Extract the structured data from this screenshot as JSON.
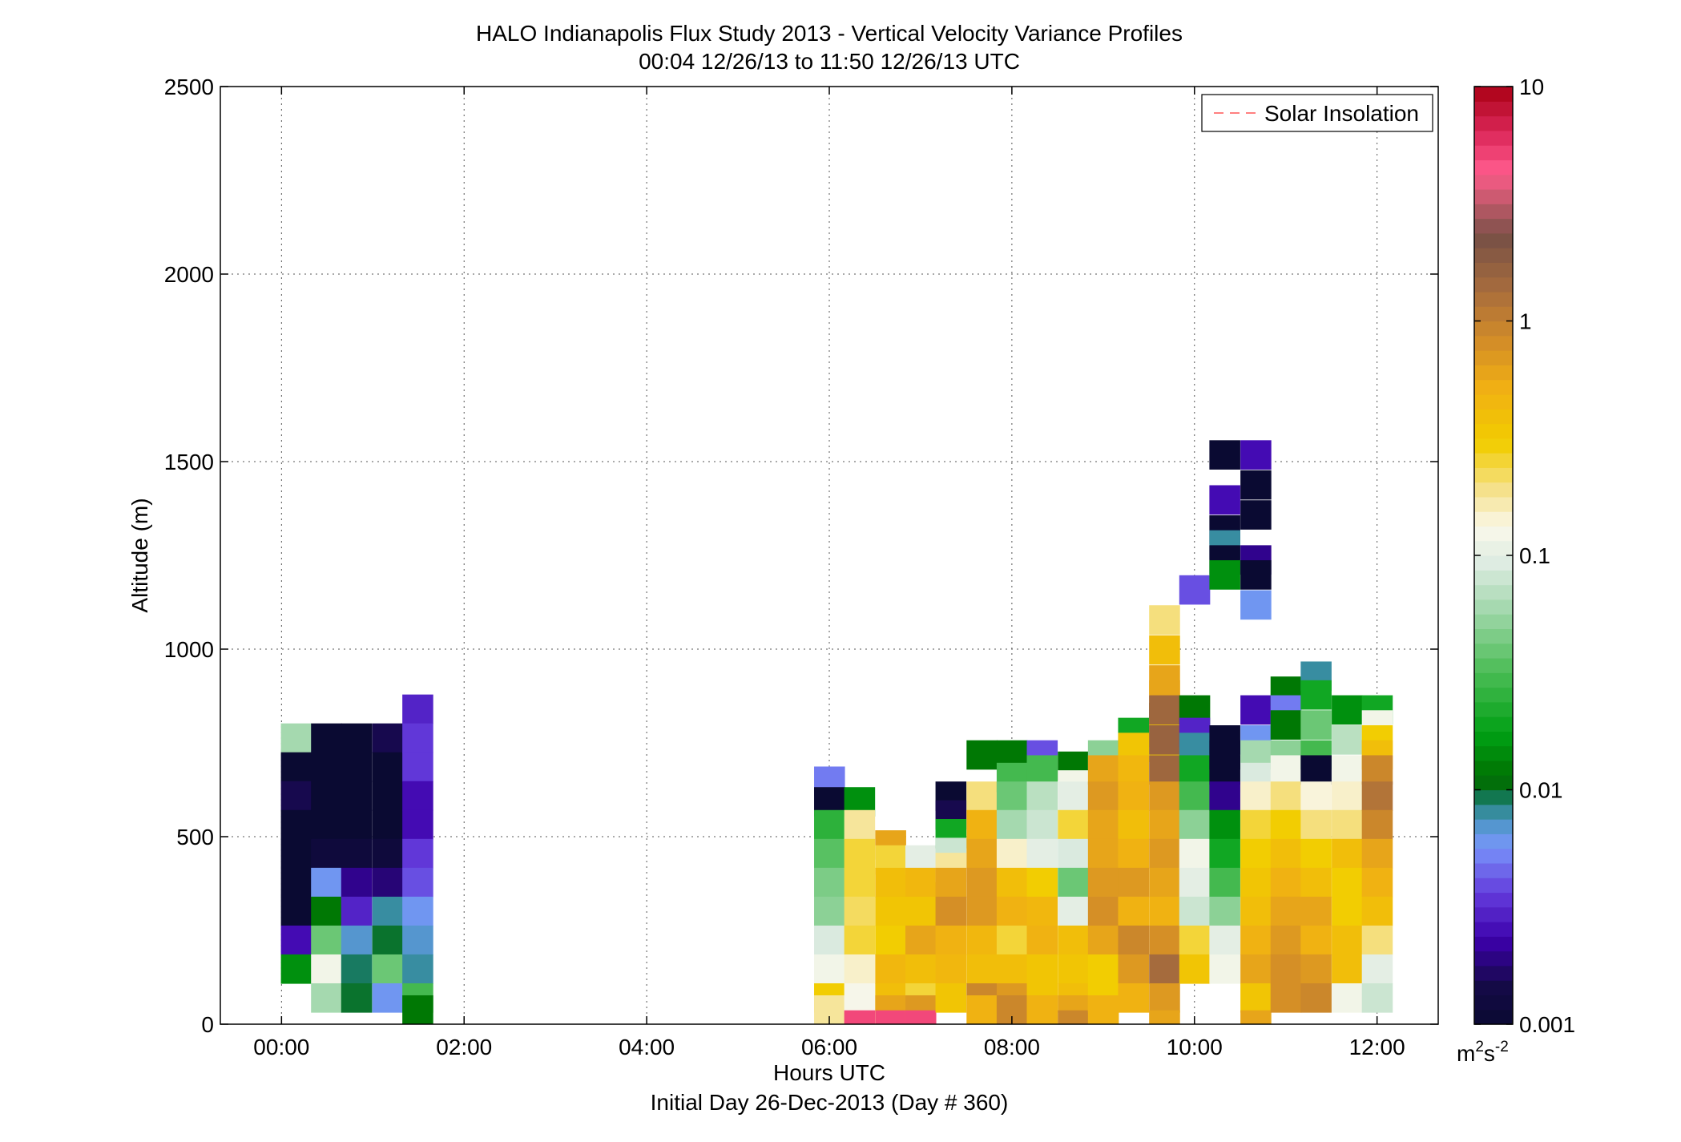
{
  "chart_data": {
    "type": "heatmap",
    "title": "HALO Indianapolis Flux Study 2013 - Vertical Velocity Variance Profiles",
    "subtitle": "00:04 12/26/13 to 11:50 12/26/13  UTC",
    "xlabel": "Hours UTC",
    "xlabel2": "Initial Day 26-Dec-2013 (Day # 360)",
    "ylabel": "Altitude (m)",
    "xlim": [
      -0.67,
      12.67
    ],
    "ylim": [
      0,
      2500
    ],
    "x_ticks": [
      0,
      2,
      4,
      6,
      8,
      10,
      12
    ],
    "x_tick_labels": [
      "00:00",
      "02:00",
      "04:00",
      "06:00",
      "08:00",
      "10:00",
      "12:00"
    ],
    "y_ticks": [
      0,
      500,
      1000,
      1500,
      2000,
      2500
    ],
    "y_tick_labels": [
      "0",
      "500",
      "1000",
      "1500",
      "2000",
      "2500"
    ],
    "grid": true,
    "legend": {
      "position": "top-right",
      "entries": [
        {
          "label": "Solar Insolation",
          "color": "#ff8080",
          "style": "dashed"
        }
      ]
    },
    "colorbar": {
      "scale": "log",
      "range": [
        0.001,
        10
      ],
      "ticks": [
        0.001,
        0.01,
        0.1,
        1,
        10
      ],
      "tick_labels": [
        "0.001",
        "0.01",
        "0.1",
        "1",
        "10"
      ],
      "unit_base": "m",
      "unit_sup1": "2",
      "unit_mid": "s",
      "unit_sup2": "-2"
    },
    "cell_width_hours": 0.333,
    "cell_height_m": 77,
    "columns": [
      {
        "x": 0.16,
        "cells": [
          [
            0.06,
            725
          ],
          [
            0.001,
            648
          ],
          [
            0.0015,
            571
          ],
          [
            0.001,
            494
          ],
          [
            0.001,
            417
          ],
          [
            0.001,
            340
          ],
          [
            0.001,
            263
          ],
          [
            0.0025,
            186
          ],
          [
            0.015,
            109
          ]
        ]
      },
      {
        "x": 0.49,
        "cells": [
          [
            0.001,
            725
          ],
          [
            0.001,
            648
          ],
          [
            0.001,
            571
          ],
          [
            0.001,
            494
          ],
          [
            0.0012,
            417
          ],
          [
            0.006,
            340
          ],
          [
            0.012,
            263
          ],
          [
            0.04,
            186
          ],
          [
            0.12,
            109
          ],
          [
            0.06,
            32
          ]
        ]
      },
      {
        "x": 0.82,
        "cells": [
          [
            0.001,
            725
          ],
          [
            0.001,
            648
          ],
          [
            0.001,
            571
          ],
          [
            0.001,
            494
          ],
          [
            0.0012,
            417
          ],
          [
            0.002,
            340
          ],
          [
            0.003,
            263
          ],
          [
            0.007,
            186
          ],
          [
            0.009,
            109
          ],
          [
            0.01,
            32
          ]
        ]
      },
      {
        "x": 1.16,
        "cells": [
          [
            0.0015,
            725
          ],
          [
            0.001,
            648
          ],
          [
            0.001,
            571
          ],
          [
            0.001,
            494
          ],
          [
            0.0012,
            417
          ],
          [
            0.0018,
            340
          ],
          [
            0.008,
            263
          ],
          [
            0.01,
            186
          ],
          [
            0.04,
            109
          ],
          [
            0.006,
            32
          ]
        ]
      },
      {
        "x": 1.49,
        "cells": [
          [
            0.003,
            802
          ],
          [
            0.0035,
            725
          ],
          [
            0.0035,
            648
          ],
          [
            0.0025,
            571
          ],
          [
            0.0025,
            494
          ],
          [
            0.0035,
            417
          ],
          [
            0.004,
            340
          ],
          [
            0.006,
            263
          ],
          [
            0.007,
            186
          ],
          [
            0.008,
            109
          ],
          [
            0.03,
            32
          ],
          [
            0.012,
            0
          ]
        ]
      },
      {
        "x": 6.0,
        "cells": [
          [
            0.005,
            610
          ],
          [
            0.001,
            555
          ],
          [
            0.025,
            494
          ],
          [
            0.035,
            417
          ],
          [
            0.045,
            340
          ],
          [
            0.05,
            263
          ],
          [
            0.09,
            186
          ],
          [
            0.12,
            109
          ],
          [
            0.3,
            32
          ],
          [
            0.18,
            0
          ]
        ]
      },
      {
        "x": 6.33,
        "cells": [
          [
            0.015,
            555
          ],
          [
            0.18,
            494
          ],
          [
            0.25,
            417
          ],
          [
            0.25,
            340
          ],
          [
            0.22,
            263
          ],
          [
            0.25,
            186
          ],
          [
            0.15,
            109
          ],
          [
            0.125,
            32
          ],
          [
            5,
            -40
          ]
        ]
      },
      {
        "x": 6.67,
        "cells": [
          [
            0.6,
            440
          ],
          [
            0.25,
            400
          ],
          [
            0.4,
            340
          ],
          [
            0.35,
            263
          ],
          [
            0.3,
            186
          ],
          [
            0.45,
            109
          ],
          [
            0.4,
            32
          ],
          [
            0.6,
            0
          ],
          [
            5,
            -40
          ]
        ]
      },
      {
        "x": 7.0,
        "cells": [
          [
            0.1,
            400
          ],
          [
            0.45,
            340
          ],
          [
            0.35,
            263
          ],
          [
            0.6,
            186
          ],
          [
            0.4,
            109
          ],
          [
            0.25,
            32
          ],
          [
            0.7,
            0
          ],
          [
            5,
            -40
          ]
        ]
      },
      {
        "x": 7.33,
        "cells": [
          [
            0.001,
            570
          ],
          [
            0.0015,
            520
          ],
          [
            0.02,
            470
          ],
          [
            0.08,
            420
          ],
          [
            0.18,
            380
          ],
          [
            0.6,
            340
          ],
          [
            0.8,
            263
          ],
          [
            0.5,
            186
          ],
          [
            0.45,
            109
          ],
          [
            0.35,
            32
          ]
        ]
      },
      {
        "x": 7.67,
        "cells": [
          [
            0.012,
            680
          ],
          [
            0.2,
            570
          ],
          [
            0.5,
            494
          ],
          [
            0.6,
            417
          ],
          [
            0.7,
            340
          ],
          [
            0.7,
            263
          ],
          [
            0.45,
            186
          ],
          [
            0.4,
            109
          ],
          [
            0.9,
            32
          ],
          [
            0.5,
            0
          ]
        ]
      },
      {
        "x": 8.0,
        "cells": [
          [
            0.012,
            680
          ],
          [
            0.03,
            620
          ],
          [
            0.04,
            570
          ],
          [
            0.06,
            494
          ],
          [
            0.15,
            417
          ],
          [
            0.4,
            340
          ],
          [
            0.5,
            263
          ],
          [
            0.25,
            186
          ],
          [
            0.4,
            109
          ],
          [
            0.7,
            32
          ],
          [
            0.9,
            0
          ]
        ]
      },
      {
        "x": 8.33,
        "cells": [
          [
            0.004,
            680
          ],
          [
            0.03,
            640
          ],
          [
            0.07,
            570
          ],
          [
            0.08,
            494
          ],
          [
            0.1,
            417
          ],
          [
            0.3,
            340
          ],
          [
            0.45,
            263
          ],
          [
            0.5,
            186
          ],
          [
            0.35,
            109
          ],
          [
            0.35,
            32
          ],
          [
            0.5,
            0
          ]
        ]
      },
      {
        "x": 8.67,
        "cells": [
          [
            0.012,
            650
          ],
          [
            0.12,
            600
          ],
          [
            0.1,
            570
          ],
          [
            0.25,
            494
          ],
          [
            0.09,
            417
          ],
          [
            0.04,
            340
          ],
          [
            0.1,
            263
          ],
          [
            0.4,
            186
          ],
          [
            0.35,
            109
          ],
          [
            0.4,
            32
          ],
          [
            0.6,
            0
          ],
          [
            0.9,
            -40
          ]
        ]
      },
      {
        "x": 9.0,
        "cells": [
          [
            0.05,
            680
          ],
          [
            0.6,
            640
          ],
          [
            0.7,
            570
          ],
          [
            0.6,
            494
          ],
          [
            0.6,
            417
          ],
          [
            0.7,
            340
          ],
          [
            0.8,
            263
          ],
          [
            0.6,
            186
          ],
          [
            0.3,
            109
          ],
          [
            0.3,
            32
          ],
          [
            0.5,
            0
          ]
        ]
      },
      {
        "x": 9.33,
        "cells": [
          [
            0.02,
            740
          ],
          [
            0.35,
            700
          ],
          [
            0.45,
            640
          ],
          [
            0.5,
            570
          ],
          [
            0.4,
            494
          ],
          [
            0.5,
            417
          ],
          [
            0.7,
            340
          ],
          [
            0.5,
            263
          ],
          [
            0.9,
            186
          ],
          [
            0.7,
            109
          ],
          [
            0.5,
            32
          ]
        ]
      },
      {
        "x": 9.67,
        "cells": [
          [
            0.001,
            780
          ],
          [
            0.35,
            740
          ],
          [
            0.3,
            700
          ],
          [
            0.2,
            1040
          ],
          [
            0.4,
            960
          ],
          [
            0.6,
            880
          ],
          [
            0.6,
            840
          ],
          [
            1.5,
            800
          ],
          [
            1.6,
            720
          ],
          [
            1.5,
            640
          ],
          [
            0.7,
            570
          ],
          [
            0.6,
            494
          ],
          [
            0.7,
            417
          ],
          [
            0.6,
            340
          ],
          [
            0.5,
            263
          ],
          [
            0.8,
            186
          ],
          [
            1.4,
            109
          ],
          [
            0.7,
            32
          ],
          [
            0.6,
            -40
          ]
        ]
      },
      {
        "x": 10.0,
        "cells": [
          [
            0.004,
            1120
          ],
          [
            0.012,
            800
          ],
          [
            0.003,
            740
          ],
          [
            0.008,
            700
          ],
          [
            0.02,
            640
          ],
          [
            0.03,
            570
          ],
          [
            0.05,
            494
          ],
          [
            0.12,
            417
          ],
          [
            0.1,
            340
          ],
          [
            0.08,
            263
          ],
          [
            0.25,
            186
          ],
          [
            0.35,
            109
          ]
        ]
      },
      {
        "x": 10.33,
        "cells": [
          [
            0.001,
            1480
          ],
          [
            0.0025,
            1360
          ],
          [
            0.001,
            1280
          ],
          [
            0.008,
            1240
          ],
          [
            0.001,
            1200
          ],
          [
            0.015,
            1160
          ],
          [
            0.001,
            720
          ],
          [
            0.001,
            680
          ],
          [
            0.001,
            640
          ],
          [
            0.002,
            570
          ],
          [
            0.015,
            494
          ],
          [
            0.02,
            417
          ],
          [
            0.03,
            340
          ],
          [
            0.05,
            263
          ],
          [
            0.1,
            186
          ],
          [
            0.12,
            109
          ]
        ]
      },
      {
        "x": 10.67,
        "cells": [
          [
            0.0025,
            1480
          ],
          [
            0.001,
            1400
          ],
          [
            0.001,
            1320
          ],
          [
            0.002,
            1200
          ],
          [
            0.001,
            1160
          ],
          [
            0.006,
            1080
          ],
          [
            0.0025,
            800
          ],
          [
            0.006,
            720
          ],
          [
            0.06,
            680
          ],
          [
            0.09,
            620
          ],
          [
            0.15,
            570
          ],
          [
            0.25,
            494
          ],
          [
            0.3,
            417
          ],
          [
            0.35,
            340
          ],
          [
            0.4,
            263
          ],
          [
            0.5,
            186
          ],
          [
            0.6,
            109
          ],
          [
            0.35,
            32
          ],
          [
            0.6,
            -40
          ]
        ]
      },
      {
        "x": 11.0,
        "cells": [
          [
            0.012,
            850
          ],
          [
            0.005,
            800
          ],
          [
            0.012,
            760
          ],
          [
            0.05,
            680
          ],
          [
            0.12,
            640
          ],
          [
            0.2,
            570
          ],
          [
            0.3,
            494
          ],
          [
            0.4,
            417
          ],
          [
            0.5,
            340
          ],
          [
            0.6,
            263
          ],
          [
            0.7,
            186
          ],
          [
            0.8,
            109
          ],
          [
            0.8,
            32
          ]
        ]
      },
      {
        "x": 11.33,
        "cells": [
          [
            0.008,
            890
          ],
          [
            0.02,
            840
          ],
          [
            0.04,
            760
          ],
          [
            0.03,
            680
          ],
          [
            0.001,
            640
          ],
          [
            0.14,
            570
          ],
          [
            0.2,
            494
          ],
          [
            0.3,
            417
          ],
          [
            0.4,
            340
          ],
          [
            0.6,
            263
          ],
          [
            0.5,
            186
          ],
          [
            0.7,
            109
          ],
          [
            0.9,
            32
          ]
        ]
      },
      {
        "x": 11.67,
        "cells": [
          [
            0.015,
            800
          ],
          [
            0.07,
            720
          ],
          [
            0.12,
            640
          ],
          [
            0.15,
            570
          ],
          [
            0.2,
            494
          ],
          [
            0.4,
            417
          ],
          [
            0.3,
            340
          ],
          [
            0.3,
            263
          ],
          [
            0.4,
            186
          ],
          [
            0.4,
            109
          ],
          [
            0.12,
            32
          ]
        ]
      },
      {
        "x": 12.0,
        "cells": [
          [
            0.02,
            800
          ],
          [
            0.12,
            760
          ],
          [
            0.3,
            720
          ],
          [
            0.4,
            680
          ],
          [
            0.9,
            640
          ],
          [
            1.2,
            570
          ],
          [
            0.9,
            494
          ],
          [
            0.6,
            417
          ],
          [
            0.5,
            340
          ],
          [
            0.4,
            263
          ],
          [
            0.2,
            186
          ],
          [
            0.1,
            109
          ],
          [
            0.08,
            32
          ]
        ]
      }
    ]
  }
}
